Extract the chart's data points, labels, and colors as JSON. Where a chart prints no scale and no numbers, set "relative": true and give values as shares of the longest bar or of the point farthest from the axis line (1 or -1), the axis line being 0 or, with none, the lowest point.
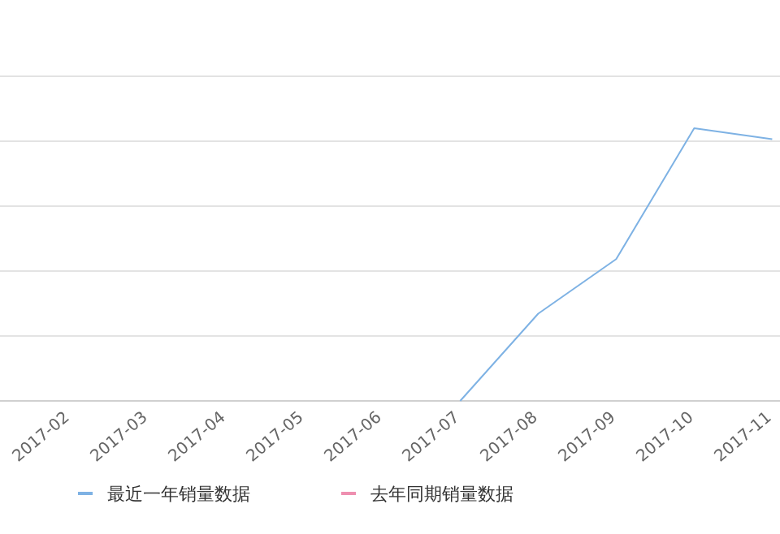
{
  "chart_data": {
    "type": "line",
    "relative": true,
    "categories": [
      "2017-02",
      "2017-03",
      "2017-04",
      "2017-05",
      "2017-06",
      "2017-07",
      "2017-08",
      "2017-09",
      "2017-10",
      "2017-11"
    ],
    "series": [
      {
        "name": "最近一年销量数据",
        "color": "#7eb2e4",
        "values": [
          null,
          null,
          null,
          null,
          null,
          0,
          0.32,
          0.52,
          1,
          0.96
        ]
      },
      {
        "name": "去年同期销量数据",
        "color": "#ee8fb0",
        "values": [
          null,
          null,
          null,
          null,
          null,
          null,
          null,
          null,
          null,
          null
        ]
      }
    ],
    "grid": "y",
    "legend": "bottom",
    "marker": "none",
    "line_style": "solid"
  }
}
